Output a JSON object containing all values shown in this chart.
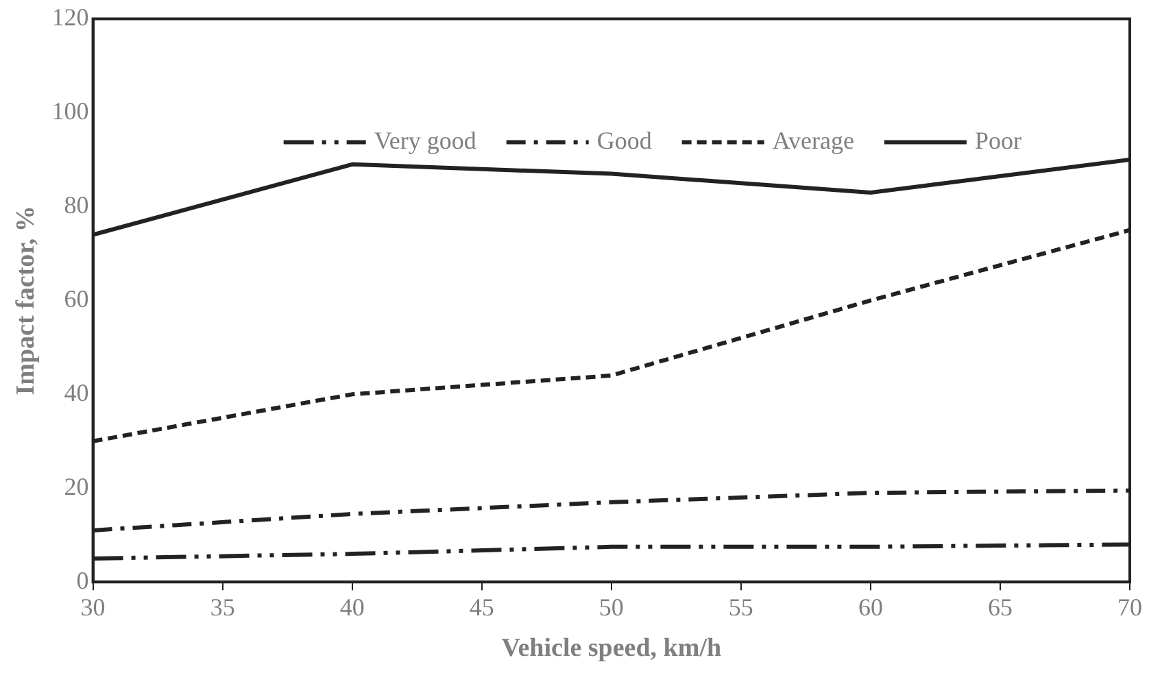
{
  "chart_data": {
    "type": "line",
    "xlabel": "Vehicle speed, km/h",
    "ylabel": "Impact factor, %",
    "x": [
      30,
      40,
      50,
      60,
      70
    ],
    "series": [
      {
        "name": "Very good",
        "color": "#222222",
        "line_style": "dashed",
        "values": [
          5,
          6,
          7.5,
          7.5,
          8
        ]
      },
      {
        "name": "Good",
        "color": "#222222",
        "line_style": "dashed",
        "values": [
          11,
          14.5,
          17,
          19,
          19.5
        ]
      },
      {
        "name": "Average",
        "color": "#222222",
        "line_style": "dashed",
        "values": [
          30,
          40,
          44,
          60,
          75
        ]
      },
      {
        "name": "Poor",
        "color": "#222222",
        "line_style": "solid",
        "values": [
          74,
          89,
          87,
          83,
          90
        ]
      }
    ],
    "xlim": [
      30,
      70
    ],
    "xticks": [
      30,
      35,
      40,
      45,
      50,
      55,
      60,
      65,
      70
    ],
    "ylim": [
      0,
      120
    ],
    "yticks": [
      0,
      20,
      40,
      60,
      80,
      100,
      120
    ],
    "grid": false,
    "legend": "top",
    "marker": "none"
  }
}
